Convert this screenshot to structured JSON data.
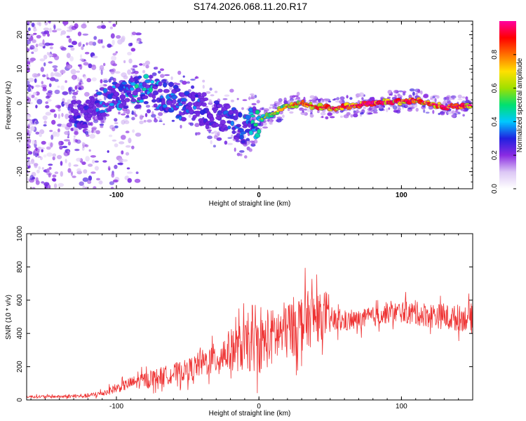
{
  "page": {
    "title": "S174.2026.068.11.20.R17"
  },
  "chart_data": [
    {
      "type": "heatmap",
      "id": "spectrogram",
      "xlabel": "Height of straight line (km)",
      "ylabel": "Frequency (Hz)",
      "xlim": [
        -163,
        150
      ],
      "ylim": [
        -25,
        24
      ],
      "x_ticks": [
        -100,
        0,
        100
      ],
      "x_tick_labels": [
        "-100",
        "0",
        "100"
      ],
      "y_ticks": [
        -20,
        -10,
        0,
        10,
        20
      ],
      "y_tick_labels": [
        "-20",
        "-10",
        "0",
        "10",
        "20"
      ],
      "colorbar": {
        "label": "Normalized spectral amplitude",
        "range": [
          0,
          1
        ],
        "ticks": [
          0.0,
          0.2,
          0.4,
          0.6,
          0.8
        ],
        "tick_labels": [
          "0.0",
          "0.2",
          "0.4",
          "0.6",
          "0.8"
        ],
        "colormap": [
          "#ffffff",
          "#dcc7f5",
          "#8a2be2",
          "#2020e0",
          "#00c8ff",
          "#00e070",
          "#a0e000",
          "#ffe000",
          "#ff7000",
          "#ff0000",
          "#ff00a0"
        ]
      },
      "ridge": {
        "x": [
          -130,
          -120,
          -110,
          -100,
          -90,
          -80,
          -70,
          -60,
          -50,
          -40,
          -30,
          -20,
          -10,
          0,
          10,
          20,
          30,
          40,
          50,
          60,
          70,
          80,
          90,
          100,
          110,
          120,
          130,
          140,
          150
        ],
        "frequency": [
          -3,
          -2,
          0,
          2,
          3,
          3.5,
          3,
          1,
          -1,
          -1.5,
          -4,
          -5,
          -7,
          -5,
          -3,
          -1,
          0,
          -1,
          -1.5,
          -1,
          -0.5,
          0,
          0.5,
          0.5,
          1,
          0,
          -1,
          -1,
          -0.5
        ],
        "amplitude": [
          0.3,
          0.3,
          0.35,
          0.4,
          0.45,
          0.45,
          0.45,
          0.4,
          0.35,
          0.3,
          0.35,
          0.35,
          0.4,
          0.55,
          0.65,
          0.75,
          0.85,
          0.85,
          0.9,
          0.9,
          0.9,
          0.95,
          0.9,
          0.9,
          0.9,
          0.9,
          0.95,
          0.9,
          0.9
        ]
      }
    },
    {
      "type": "line",
      "id": "snr",
      "xlabel": "Height of straight line (km)",
      "ylabel": "SNR (10 * v/v)",
      "xlim": [
        -163,
        150
      ],
      "ylim": [
        0,
        1000
      ],
      "x_ticks": [
        -100,
        0,
        100
      ],
      "x_tick_labels": [
        "-100",
        "0",
        "100"
      ],
      "y_ticks": [
        0,
        200,
        400,
        600,
        800,
        1000
      ],
      "y_tick_labels": [
        "0",
        "200",
        "400",
        "600",
        "800",
        "1000"
      ],
      "series": [
        {
          "name": "SNR",
          "color": "#ee3333",
          "envelope": {
            "x": [
              -163,
              -150,
              -140,
              -130,
              -120,
              -110,
              -100,
              -90,
              -80,
              -70,
              -60,
              -50,
              -40,
              -30,
              -20,
              -10,
              0,
              10,
              20,
              30,
              40,
              50,
              60,
              70,
              80,
              90,
              100,
              110,
              120,
              130,
              140,
              150
            ],
            "mean": [
              20,
              20,
              20,
              22,
              25,
              40,
              70,
              100,
              120,
              140,
              160,
              180,
              220,
              250,
              300,
              320,
              330,
              380,
              420,
              470,
              500,
              480,
              470,
              480,
              500,
              520,
              530,
              520,
              510,
              500,
              490,
              500
            ],
            "spread": [
              15,
              15,
              15,
              20,
              25,
              35,
              50,
              70,
              90,
              100,
              110,
              120,
              150,
              180,
              230,
              280,
              300,
              320,
              330,
              330,
              300,
              150,
              110,
              110,
              110,
              110,
              120,
              130,
              140,
              140,
              140,
              150
            ]
          }
        }
      ]
    }
  ]
}
